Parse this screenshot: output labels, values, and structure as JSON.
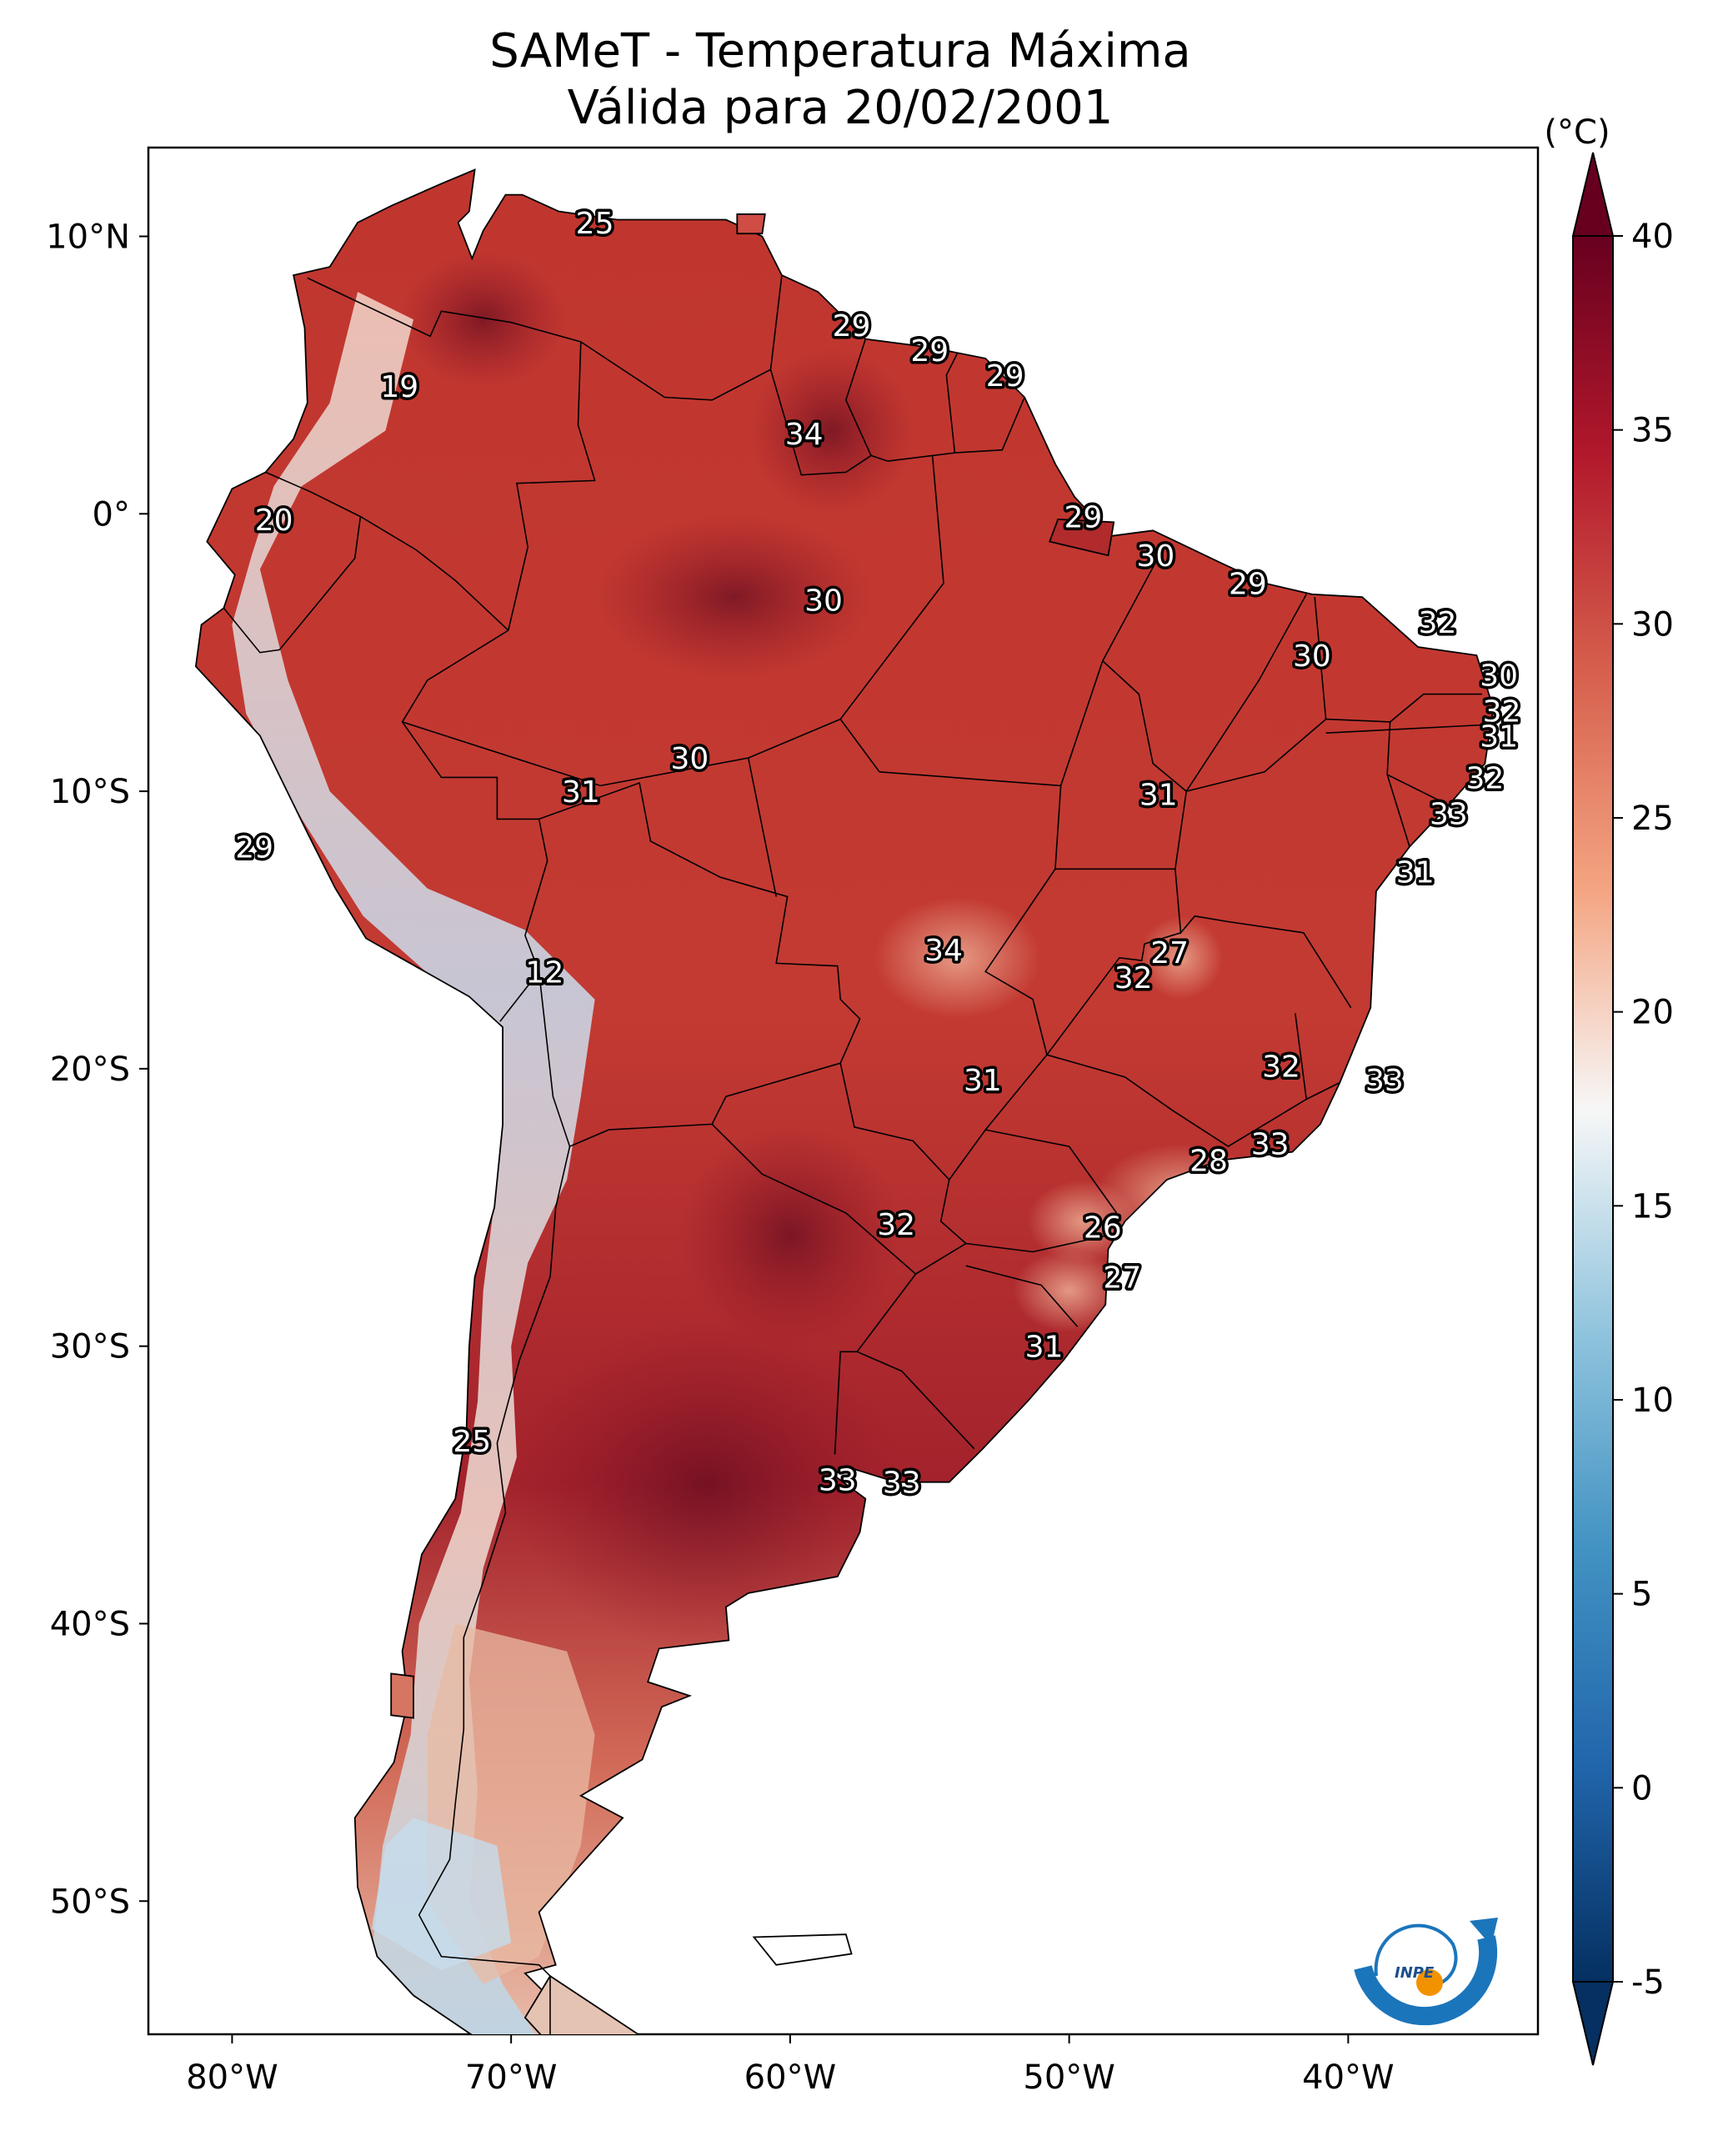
{
  "title": {
    "line1": "SAMeT - Temperatura Máxima",
    "line2": "Válida para 20/02/2001"
  },
  "map": {
    "lon_ticks": [
      "80°W",
      "70°W",
      "60°W",
      "50°W",
      "40°W"
    ],
    "lat_ticks": [
      "10°N",
      "0°",
      "10°S",
      "20°S",
      "30°S",
      "40°S",
      "50°S"
    ],
    "temperature_labels": [
      {
        "text": "25",
        "lon": -67.0,
        "lat": 10.5
      },
      {
        "text": "29",
        "lon": -57.8,
        "lat": 6.8
      },
      {
        "text": "29",
        "lon": -55.0,
        "lat": 5.9
      },
      {
        "text": "29",
        "lon": -52.3,
        "lat": 5.0
      },
      {
        "text": "19",
        "lon": -74.0,
        "lat": 4.6
      },
      {
        "text": "34",
        "lon": -59.5,
        "lat": 2.9
      },
      {
        "text": "20",
        "lon": -78.5,
        "lat": -0.2
      },
      {
        "text": "29",
        "lon": -49.5,
        "lat": -0.1
      },
      {
        "text": "30",
        "lon": -46.9,
        "lat": -1.5
      },
      {
        "text": "29",
        "lon": -43.6,
        "lat": -2.5
      },
      {
        "text": "30",
        "lon": -58.8,
        "lat": -3.1
      },
      {
        "text": "32",
        "lon": -36.8,
        "lat": -3.9
      },
      {
        "text": "30",
        "lon": -41.3,
        "lat": -5.1
      },
      {
        "text": "30",
        "lon": -34.6,
        "lat": -5.8
      },
      {
        "text": "32",
        "lon": -34.5,
        "lat": -7.1
      },
      {
        "text": "31",
        "lon": -34.6,
        "lat": -8.0
      },
      {
        "text": "30",
        "lon": -63.6,
        "lat": -8.8
      },
      {
        "text": "31",
        "lon": -67.5,
        "lat": -10.0
      },
      {
        "text": "31",
        "lon": -46.8,
        "lat": -10.1
      },
      {
        "text": "32",
        "lon": -35.1,
        "lat": -9.5
      },
      {
        "text": "33",
        "lon": -36.4,
        "lat": -10.8
      },
      {
        "text": "29",
        "lon": -79.2,
        "lat": -12.0
      },
      {
        "text": "31",
        "lon": -37.6,
        "lat": -12.9
      },
      {
        "text": "34",
        "lon": -54.5,
        "lat": -15.7
      },
      {
        "text": "27",
        "lon": -46.4,
        "lat": -15.8
      },
      {
        "text": "32",
        "lon": -47.7,
        "lat": -16.7
      },
      {
        "text": "12",
        "lon": -68.8,
        "lat": -16.5
      },
      {
        "text": "32",
        "lon": -42.4,
        "lat": -19.9
      },
      {
        "text": "33",
        "lon": -38.7,
        "lat": -20.4
      },
      {
        "text": "31",
        "lon": -53.1,
        "lat": -20.4
      },
      {
        "text": "33",
        "lon": -42.8,
        "lat": -22.7
      },
      {
        "text": "28",
        "lon": -45.0,
        "lat": -23.3
      },
      {
        "text": "32",
        "lon": -56.2,
        "lat": -25.6
      },
      {
        "text": "26",
        "lon": -48.8,
        "lat": -25.7
      },
      {
        "text": "27",
        "lon": -48.1,
        "lat": -27.5
      },
      {
        "text": "31",
        "lon": -50.9,
        "lat": -30.0
      },
      {
        "text": "25",
        "lon": -71.4,
        "lat": -33.4
      },
      {
        "text": "33",
        "lon": -58.3,
        "lat": -34.8
      },
      {
        "text": "33",
        "lon": -56.0,
        "lat": -34.9
      }
    ]
  },
  "colorbar": {
    "unit": "(°C)",
    "tick_labels": [
      "40",
      "35",
      "30",
      "25",
      "20",
      "15",
      "10",
      "5",
      "0",
      "-5"
    ],
    "range": [
      -5,
      40
    ]
  },
  "logo": {
    "text": "INPE"
  },
  "colors": {
    "very_hot": "#67001f",
    "hot": "#b2182b",
    "warm": "#d6604d",
    "mild_warm": "#f4a582",
    "neutral": "#f7f7f7",
    "cool": "#92c5de",
    "cold": "#4393c3",
    "very_cold": "#053061",
    "logo_blue": "#1b75bb",
    "logo_orange": "#f39200"
  }
}
